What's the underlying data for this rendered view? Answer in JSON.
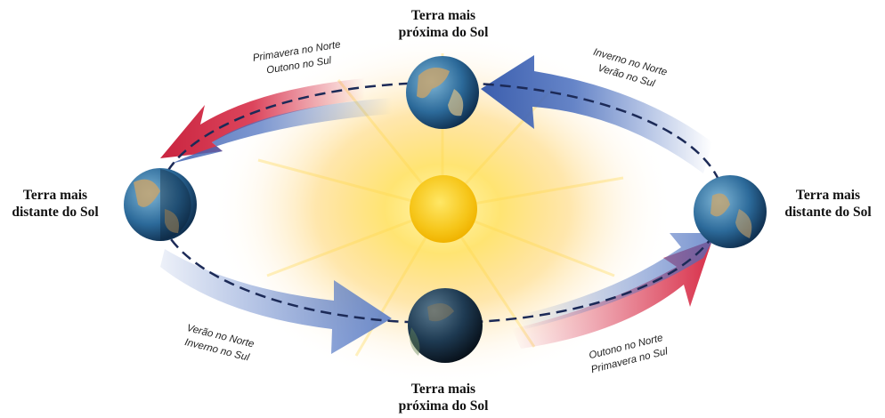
{
  "colors": {
    "sun": "#f6c61a",
    "sun_glow": "#ffe36b",
    "arrow_red": "#d8304a",
    "arrow_blue": "#4a6fbf",
    "orbit": "#1c2a57",
    "earth_ocean": "#2c6a9a",
    "earth_land": "#c9a46a"
  },
  "labels": {
    "top": [
      "Terra mais",
      "próxima do Sol"
    ],
    "bottom": [
      "Terra mais",
      "próxima do Sol"
    ],
    "left": [
      "Terra mais",
      "distante do Sol"
    ],
    "right": [
      "Terra mais",
      "distante do Sol"
    ]
  },
  "seasons": {
    "top_left": [
      "Primavera no Norte",
      "Outono no Sul"
    ],
    "top_right": [
      "Inverno no Norte",
      "Verão no Sul"
    ],
    "bottom_left": [
      "Verão no Norte",
      "Inverno no Sul"
    ],
    "bottom_right": [
      "Outono no Norte",
      "Primavera no Sul"
    ]
  },
  "icons": [
    "sun-icon",
    "earth-icon",
    "orbit-arrow-icon"
  ]
}
